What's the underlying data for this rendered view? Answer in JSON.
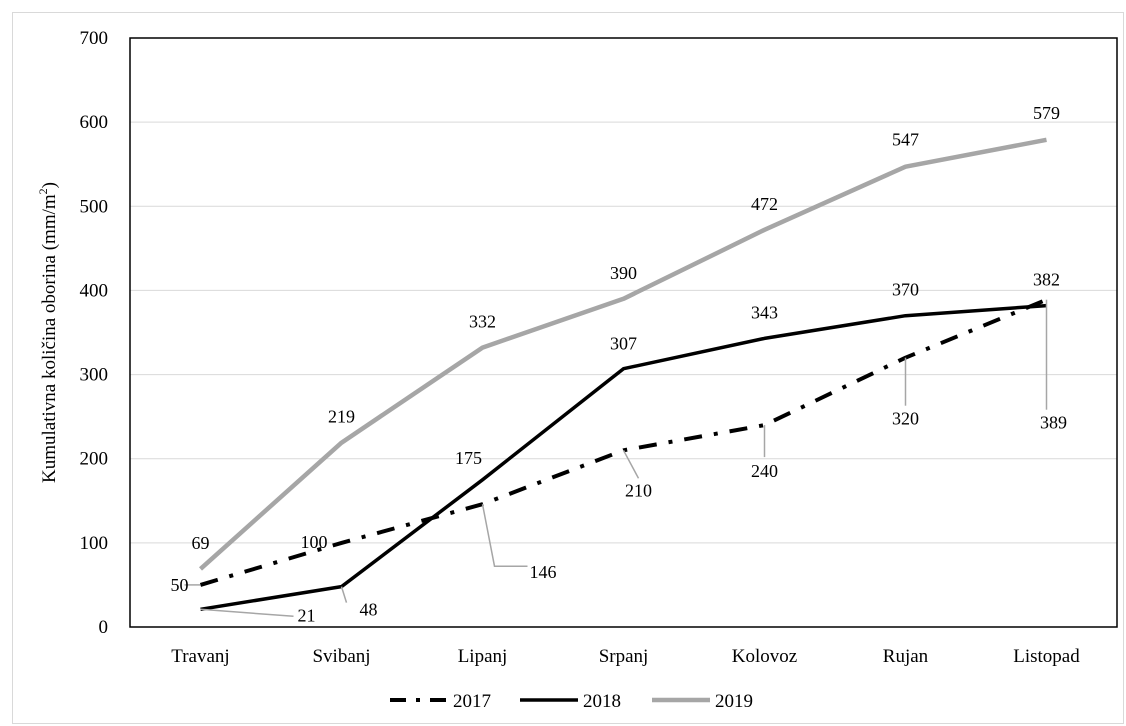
{
  "chart_data": {
    "type": "line",
    "ylabel_main": "Kumulativna količina oborina (mm/m",
    "ylabel_sup": "2",
    "ylabel_end": ")",
    "xlabel": "",
    "ylim": [
      0,
      700
    ],
    "yticks": [
      "0",
      "100",
      "200",
      "300",
      "400",
      "500",
      "600",
      "700"
    ],
    "categories": [
      "Travanj",
      "Svibanj",
      "Lipanj",
      "Srpanj",
      "Kolovoz",
      "Rujan",
      "Listopad"
    ],
    "grid": true,
    "legend_position": "bottom",
    "series": [
      {
        "name": "2017",
        "values": [
          50,
          100,
          146,
          210,
          240,
          320,
          389
        ],
        "labels": [
          "50",
          "100",
          "146",
          "210",
          "240",
          "320",
          "389"
        ],
        "color": "#000000",
        "style": "dash-dot"
      },
      {
        "name": "2018",
        "values": [
          21,
          48,
          175,
          307,
          343,
          370,
          382
        ],
        "labels": [
          "21",
          "48",
          "175",
          "307",
          "343",
          "370",
          "382"
        ],
        "color": "#000000",
        "style": "solid"
      },
      {
        "name": "2019",
        "values": [
          69,
          219,
          332,
          390,
          472,
          547,
          579
        ],
        "labels": [
          "69",
          "219",
          "332",
          "390",
          "472",
          "547",
          "579"
        ],
        "color": "#a6a6a6",
        "style": "solid"
      }
    ]
  }
}
